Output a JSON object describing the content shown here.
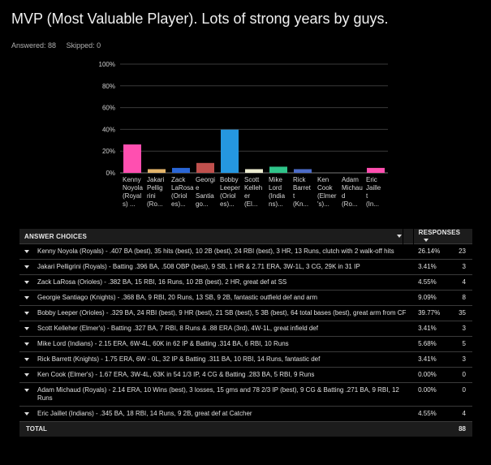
{
  "header": {
    "title": "MVP (Most Valuable Player). Lots of strong years by guys.",
    "answered_label": "Answered: 88",
    "skipped_label": "Skipped: 0"
  },
  "chart_data": {
    "type": "bar",
    "title": "",
    "xlabel": "",
    "ylabel": "",
    "ylim": [
      0,
      100
    ],
    "yticks": [
      "0%",
      "20%",
      "40%",
      "60%",
      "80%",
      "100%"
    ],
    "grid": true,
    "legend": "none",
    "categories": [
      [
        "Kenny",
        "Noyola",
        "(Royal",
        "s) ..."
      ],
      [
        "Jakari",
        "Pellig",
        "rini",
        "(Ro..."
      ],
      [
        "Zack",
        "LaRosa",
        "(Oriol",
        "es)..."
      ],
      [
        "Georgi",
        "e",
        "Santia",
        "go..."
      ],
      [
        "Bobby",
        "Leeper",
        "(Oriol",
        "es)..."
      ],
      [
        "Scott",
        "Kelleh",
        "er",
        "(El..."
      ],
      [
        "Mike",
        "Lord",
        "(India",
        "ns)..."
      ],
      [
        "Rick",
        "Barret",
        "t",
        "(Kn..."
      ],
      [
        "Ken",
        "Cook",
        "(Elmer",
        "'s)..."
      ],
      [
        "Adam",
        "Michau",
        "d",
        "(Ro..."
      ],
      [
        "Eric",
        "Jaille",
        "t",
        "(In..."
      ]
    ],
    "values": [
      26.14,
      3.41,
      4.55,
      9.09,
      39.77,
      3.41,
      5.68,
      3.41,
      0.0,
      0.0,
      4.55
    ],
    "colors": [
      "#ff4fb0",
      "#e3b46a",
      "#2a66d6",
      "#c0504d",
      "#2597e0",
      "#ecebcf",
      "#2fc48a",
      "#4c6bc7",
      "#777777",
      "#777777",
      "#ff4fb0"
    ]
  },
  "table": {
    "header_choices": "ANSWER CHOICES",
    "header_responses": "RESPONSES",
    "rows": [
      {
        "label": "Kenny Noyola (Royals) - .407 BA (best), 35 hits (best), 10 2B (best), 24 RBI (best), 3 HR, 13 Runs, clutch with 2 walk-off hits",
        "pct": "26.14%",
        "count": "23"
      },
      {
        "label": "Jakari Pelligrini (Royals) - Batting .396 BA, .508 OBP (best), 9 SB, 1 HR & 2.71 ERA, 3W-1L, 3 CG, 29K in 31 IP",
        "pct": "3.41%",
        "count": "3"
      },
      {
        "label": "Zack LaRosa (Orioles) - .382 BA, 15 RBI, 16 Runs, 10 2B (best), 2 HR, great def at SS",
        "pct": "4.55%",
        "count": "4"
      },
      {
        "label": "Georgie Santiago (Knights) - .368 BA, 9 RBI, 20 Runs, 13 SB, 9 2B, fantastic outfield def and arm",
        "pct": "9.09%",
        "count": "8"
      },
      {
        "label": "Bobby Leeper (Orioles) - .329 BA, 24 RBI (best), 9 HR (best), 21 SB (best), 5 3B (best), 64 total bases (best), great arm from CF",
        "pct": "39.77%",
        "count": "35"
      },
      {
        "label": "Scott Kelleher (Elmer's) - Batting .327 BA, 7 RBI, 8 Runs & .88 ERA (3rd), 4W-1L, great infield def",
        "pct": "3.41%",
        "count": "3"
      },
      {
        "label": "Mike Lord (Indians) - 2.15 ERA, 6W-4L, 60K in 62 IP & Batting .314 BA, 6 RBI, 10 Runs",
        "pct": "5.68%",
        "count": "5"
      },
      {
        "label": "Rick Barrett (Knights) - 1.75 ERA, 6W - 0L, 32 IP & Batting .311 BA, 10 RBI, 14 Runs, fantastic def",
        "pct": "3.41%",
        "count": "3"
      },
      {
        "label": "Ken Cook (Elmer's) - 1.67 ERA, 3W-4L, 63K in 54 1/3 IP, 4 CG & Batting .283 BA, 5 RBI, 9 Runs",
        "pct": "0.00%",
        "count": "0"
      },
      {
        "label": "Adam Michaud (Royals) - 2.14 ERA, 10 Wins (best), 3 losses, 15 gms and 78 2/3 IP (best), 9 CG & Batting .271 BA, 9 RBI, 12 Runs",
        "pct": "0.00%",
        "count": "0"
      },
      {
        "label": "Eric Jaillet (Indians) - .345 BA, 18 RBI, 14 Runs, 9 2B, great def at Catcher",
        "pct": "4.55%",
        "count": "4"
      }
    ],
    "total_label": "TOTAL",
    "total_count": "88"
  }
}
